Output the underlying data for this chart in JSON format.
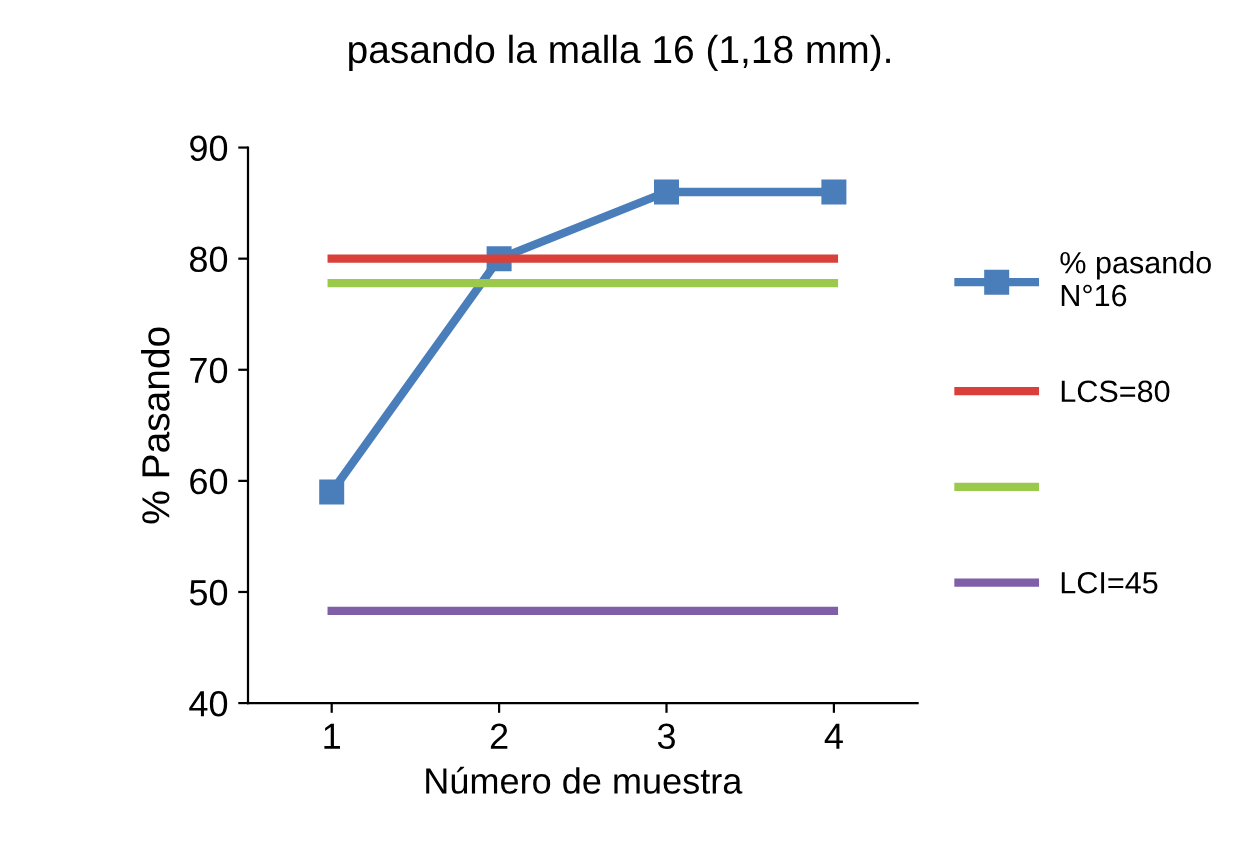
{
  "chart_data": {
    "type": "line",
    "title": "pasando la malla 16 (1,18 mm).",
    "xlabel": "Número de muestra",
    "ylabel": "% Pasando",
    "categories": [
      "1",
      "2",
      "3",
      "4"
    ],
    "series": [
      {
        "name": "% pasando\nN°16",
        "color": "#4a7ebb",
        "values": [
          59,
          80,
          86,
          86
        ],
        "marker": "square"
      },
      {
        "name": "LCS=80",
        "color": "#d9403a",
        "values": [
          80,
          80,
          80,
          80
        ],
        "marker": "none"
      },
      {
        "color": "#9bc94b",
        "values": [
          77.8,
          77.8,
          77.8,
          77.8
        ],
        "marker": "none"
      },
      {
        "name": "LCI=45",
        "color": "#7f5fa8",
        "values": [
          48.3,
          48.3,
          48.3,
          48.3
        ],
        "marker": "none"
      }
    ],
    "ylim": [
      40,
      90
    ],
    "yticks": [
      40,
      50,
      60,
      70,
      80,
      90
    ],
    "grid": false,
    "legend": "right"
  }
}
